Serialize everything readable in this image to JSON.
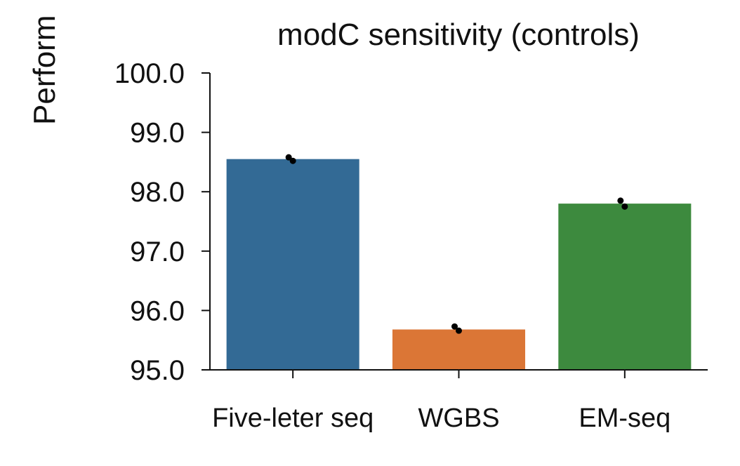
{
  "chart_data": {
    "type": "bar",
    "title": "modC sensitivity (controls)",
    "ylabel": "Perform",
    "xlabel": "",
    "categories": [
      "Five-leter seq",
      "WGBS",
      "EM-seq"
    ],
    "values": [
      98.55,
      95.68,
      97.8
    ],
    "colors": [
      "#336a95",
      "#db7636",
      "#3d8a3e"
    ],
    "points": [
      [
        98.58,
        98.52
      ],
      [
        95.73,
        95.66
      ],
      [
        97.85,
        97.75
      ]
    ],
    "ylim": [
      95.0,
      100.0
    ],
    "yticks": [
      "95.0",
      "96.0",
      "97.0",
      "98.0",
      "99.0",
      "100.0"
    ],
    "grid": false,
    "legend": "none"
  }
}
